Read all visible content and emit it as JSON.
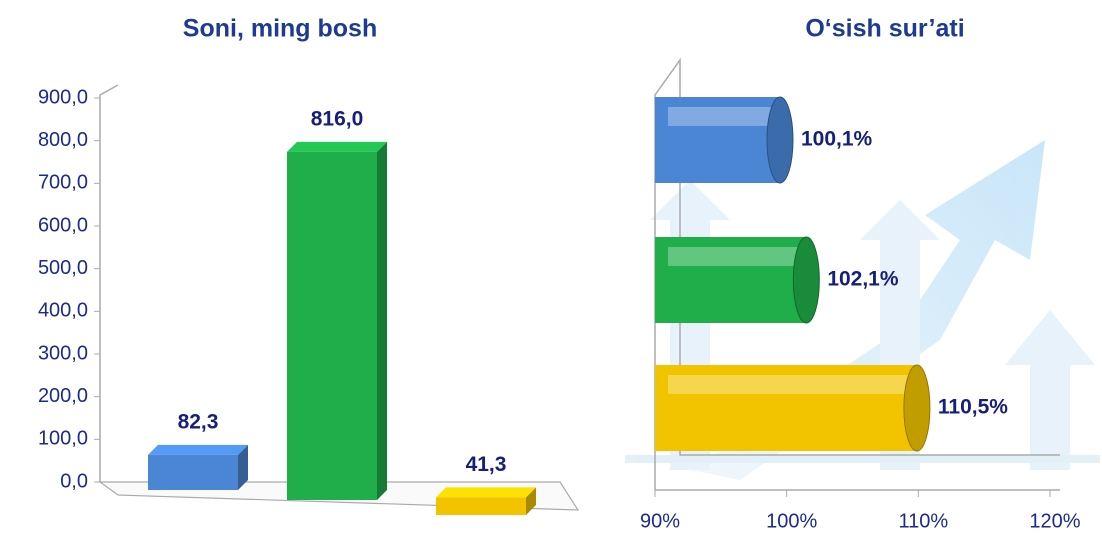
{
  "chart_data": [
    {
      "type": "bar",
      "title": "Soni, ming bosh",
      "categories": [
        null,
        null,
        null
      ],
      "values": [
        82.3,
        816.0,
        41.3
      ],
      "value_labels": [
        "82,3",
        "816,0",
        "41,3"
      ],
      "colors": [
        "#4a86d4",
        "#1fae4a",
        "#f2c400"
      ],
      "ylim": [
        0,
        900
      ],
      "yticks": [
        {
          "value": 0,
          "label": "0,0"
        },
        {
          "value": 100,
          "label": "100,0"
        },
        {
          "value": 200,
          "label": "200,0"
        },
        {
          "value": 300,
          "label": "300,0"
        },
        {
          "value": 400,
          "label": "400,0"
        },
        {
          "value": 500,
          "label": "500,0"
        },
        {
          "value": 600,
          "label": "600,0"
        },
        {
          "value": 700,
          "label": "700,0"
        },
        {
          "value": 800,
          "label": "800,0"
        },
        {
          "value": 900,
          "label": "900,0"
        }
      ]
    },
    {
      "type": "barh",
      "title": "O‘sish sur’ati",
      "categories": [
        null,
        null,
        null
      ],
      "values": [
        100.1,
        102.1,
        110.5
      ],
      "value_labels": [
        "100,1%",
        "102,1%",
        "110,5%"
      ],
      "colors": [
        "#4a86d4",
        "#1fae4a",
        "#f2c400"
      ],
      "xlim": [
        90,
        120
      ],
      "xticks": [
        {
          "value": 90,
          "label": "90%"
        },
        {
          "value": 100,
          "label": "100%"
        },
        {
          "value": 110,
          "label": "110%"
        },
        {
          "value": 120,
          "label": "120%"
        }
      ]
    }
  ]
}
